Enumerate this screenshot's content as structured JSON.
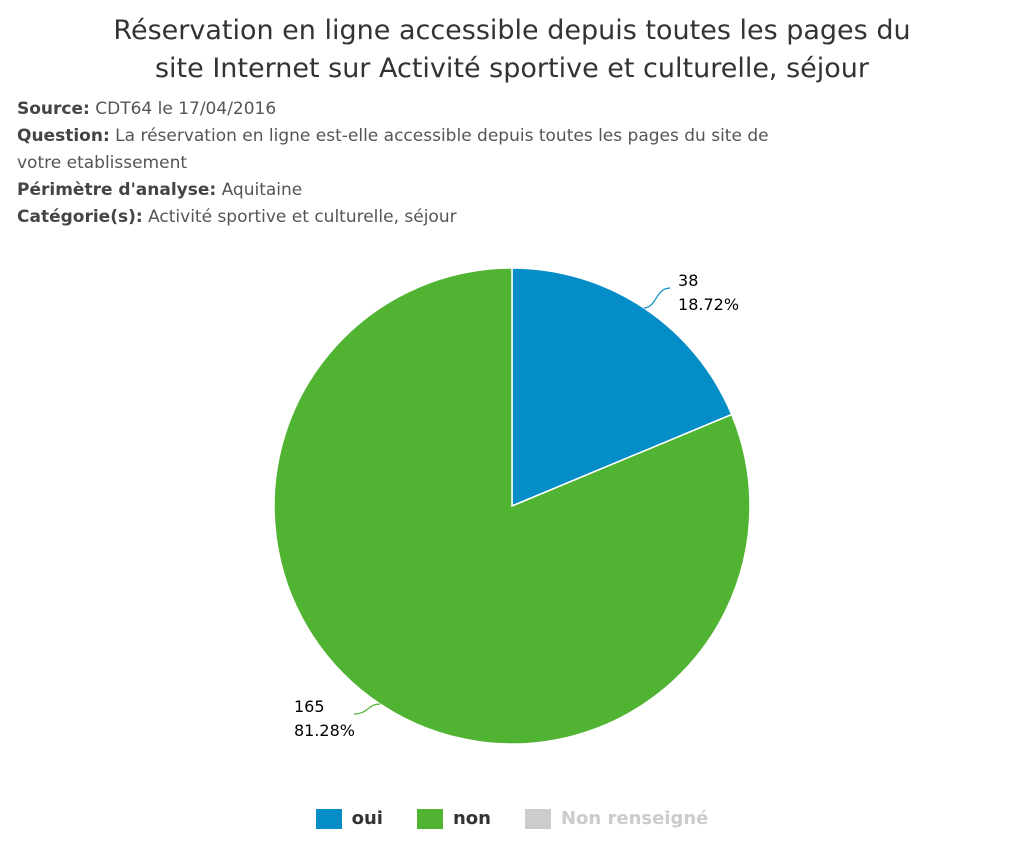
{
  "title_lines": [
    "Réservation en ligne accessible depuis toutes les pages du",
    "site Internet sur Activité sportive et culturelle, séjour"
  ],
  "meta": {
    "source_key": "Source:",
    "source_val": "CDT64 le 17/04/2016",
    "question_key": "Question:",
    "question_val": "La réservation en ligne est-elle accessible depuis toutes les pages du site de",
    "question_val2": "votre etablissement",
    "perimetre_key": "Périmètre d'analyse:",
    "perimetre_val": "Aquitaine",
    "categorie_key": "Catégorie(s):",
    "categorie_val": "Activité sportive et culturelle, séjour"
  },
  "chart_data": {
    "type": "pie",
    "slices": [
      {
        "name": "oui",
        "value": 38,
        "percent": "18.72%",
        "color": "#058DC7"
      },
      {
        "name": "non",
        "value": 165,
        "percent": "81.28%",
        "color": "#50B432"
      }
    ],
    "legend": [
      {
        "name": "oui",
        "color": "#058DC7",
        "visible": true
      },
      {
        "name": "non",
        "color": "#50B432",
        "visible": true
      },
      {
        "name": "Non renseigné",
        "color": "#cccccc",
        "visible": false
      }
    ]
  }
}
